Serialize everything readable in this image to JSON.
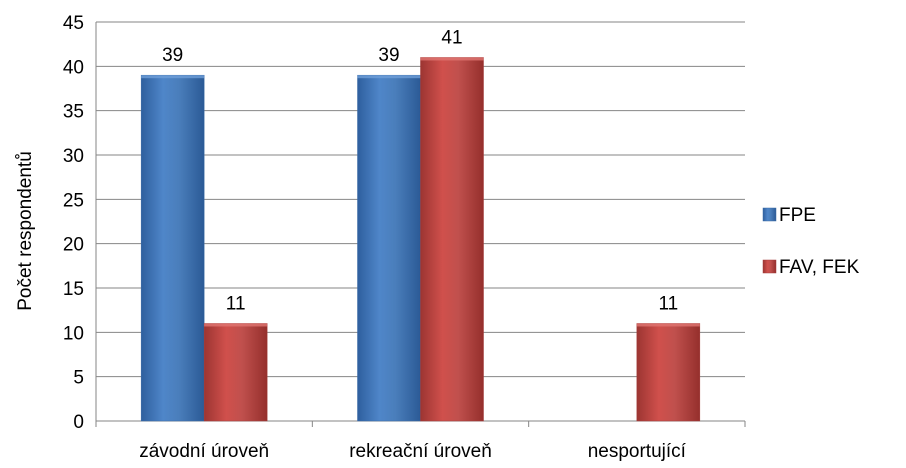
{
  "chart_data": {
    "type": "bar",
    "categories": [
      "závodní úroveň",
      "rekreační úroveň",
      "nesportující"
    ],
    "series": [
      {
        "name": "FPE",
        "values": [
          39,
          39,
          null
        ],
        "color": "#4a7ebb"
      },
      {
        "name": "FAV, FEK",
        "values": [
          11,
          41,
          11
        ],
        "color": "#c0504d"
      }
    ],
    "data_labels": [
      [
        "39",
        "39",
        ""
      ],
      [
        "11",
        "41",
        "11"
      ]
    ],
    "y_ticks": [
      "0",
      "5",
      "10",
      "15",
      "20",
      "25",
      "30",
      "35",
      "40",
      "45"
    ],
    "ylim": [
      0,
      45
    ],
    "ylabel": "Počet respondentů",
    "xlabel": "",
    "grid": true,
    "legend_position": "right"
  }
}
